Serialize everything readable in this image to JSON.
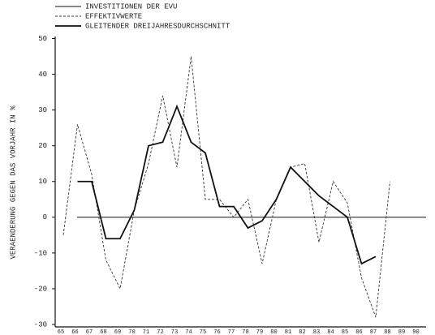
{
  "chart_data": {
    "type": "line",
    "title": "INVESTITIONEN DER EVU",
    "ylabel": "VERAENDERUNG GEGEN DAS VORJAHR IN %",
    "categories": [
      "65",
      "66",
      "67",
      "68",
      "69",
      "70",
      "71",
      "72",
      "73",
      "74",
      "75",
      "76",
      "77",
      "78",
      "79",
      "80",
      "81",
      "82",
      "83",
      "84",
      "85",
      "86",
      "87",
      "88",
      "89",
      "90"
    ],
    "series": [
      {
        "name": "EFFEKTIVWERTE",
        "color": "#333333",
        "style": "dashed",
        "values": [
          -5,
          26,
          12,
          -12,
          -20,
          2,
          15,
          34,
          14,
          45,
          5,
          5,
          0,
          5,
          -13,
          5,
          14,
          15,
          -7,
          10,
          4,
          -17,
          -28,
          10,
          null,
          null
        ]
      },
      {
        "name": "GLEITENDER DREIJAHRESDURCHSCHNITT",
        "color": "#111111",
        "style": "solid",
        "values": [
          null,
          10,
          10,
          -6,
          -6,
          2,
          20,
          21,
          31,
          21,
          18,
          3,
          3,
          -3,
          -1,
          5,
          14,
          10,
          6,
          3,
          0,
          -13,
          -11,
          null,
          null,
          null
        ]
      }
    ],
    "ylim": [
      -30,
      50
    ],
    "yticks": [
      -30,
      -20,
      -10,
      0,
      10,
      20,
      30,
      40,
      50
    ]
  }
}
